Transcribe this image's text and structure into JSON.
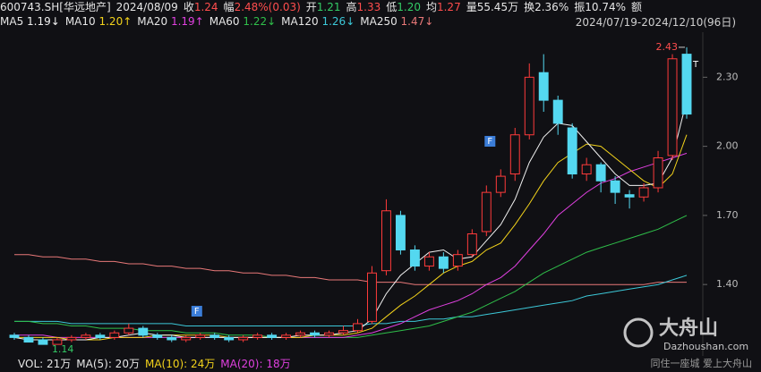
{
  "chart_data": {
    "type": "candlestick",
    "header": [
      {
        "label": "600743.SH[华远地产]",
        "color": "#e6e6e6"
      },
      {
        "label": "2024/08/09",
        "color": "#e6e6e6"
      },
      {
        "label": "收",
        "value": "1.24",
        "color": "#ff4d4d"
      },
      {
        "label": "幅",
        "value": "2.48%(0.03)",
        "color": "#ff4d4d"
      },
      {
        "label": "开",
        "value": "1.21",
        "color": "#33cc66"
      },
      {
        "label": "高",
        "value": "1.33",
        "color": "#ff4d4d"
      },
      {
        "label": "低",
        "value": "1.20",
        "color": "#33cc66"
      },
      {
        "label": "均",
        "value": "1.27",
        "color": "#ff4d4d"
      },
      {
        "label": "量",
        "value": "55.45万",
        "color": "#e6e6e6"
      },
      {
        "label": "换",
        "value": "2.36%",
        "color": "#e6e6e6"
      },
      {
        "label": "振",
        "value": "10.74%",
        "color": "#e6e6e6"
      },
      {
        "label": "额",
        "color": "#e6e6e6"
      }
    ],
    "range_label": "2024/07/19-2024/12/10(96日)",
    "up_color": "#ff3b3b",
    "down_color": "#54d8f0",
    "open": [
      1.18,
      1.17,
      1.16,
      1.14,
      1.16,
      1.17,
      1.18,
      1.17,
      1.19,
      1.21,
      1.18,
      1.17,
      1.16,
      1.17,
      1.18,
      1.17,
      1.16,
      1.17,
      1.18,
      1.17,
      1.18,
      1.19,
      1.18,
      1.19,
      1.2,
      1.24,
      1.46,
      1.7,
      1.55,
      1.48,
      1.52,
      1.48,
      1.53,
      1.63,
      1.8,
      1.88,
      2.05,
      2.32,
      2.2,
      2.08,
      1.88,
      1.92,
      1.85,
      1.79,
      1.78,
      1.82,
      1.96,
      2.4
    ],
    "high": [
      1.19,
      1.18,
      1.17,
      1.17,
      1.18,
      1.19,
      1.19,
      1.2,
      1.23,
      1.22,
      1.19,
      1.18,
      1.18,
      1.19,
      1.19,
      1.18,
      1.18,
      1.19,
      1.19,
      1.19,
      1.2,
      1.2,
      1.2,
      1.22,
      1.25,
      1.48,
      1.77,
      1.72,
      1.57,
      1.54,
      1.54,
      1.55,
      1.64,
      1.83,
      1.9,
      2.08,
      2.36,
      2.4,
      2.22,
      2.1,
      1.95,
      1.93,
      1.87,
      1.81,
      1.84,
      1.98,
      2.4,
      2.43
    ],
    "low": [
      1.16,
      1.15,
      1.14,
      1.15,
      1.15,
      1.16,
      1.16,
      1.16,
      1.18,
      1.17,
      1.16,
      1.15,
      1.15,
      1.16,
      1.16,
      1.15,
      1.15,
      1.16,
      1.16,
      1.16,
      1.17,
      1.17,
      1.17,
      1.18,
      1.19,
      1.23,
      1.44,
      1.53,
      1.46,
      1.46,
      1.45,
      1.46,
      1.52,
      1.61,
      1.78,
      1.85,
      2.03,
      2.15,
      2.05,
      1.86,
      1.85,
      1.8,
      1.75,
      1.73,
      1.76,
      1.8,
      1.94,
      2.12
    ],
    "close": [
      1.17,
      1.15,
      1.14,
      1.16,
      1.17,
      1.18,
      1.17,
      1.19,
      1.21,
      1.18,
      1.17,
      1.16,
      1.17,
      1.18,
      1.17,
      1.16,
      1.17,
      1.18,
      1.17,
      1.18,
      1.19,
      1.18,
      1.19,
      1.2,
      1.23,
      1.45,
      1.72,
      1.55,
      1.48,
      1.52,
      1.47,
      1.53,
      1.62,
      1.8,
      1.87,
      2.05,
      2.3,
      2.2,
      2.1,
      1.88,
      1.92,
      1.85,
      1.8,
      1.78,
      1.82,
      1.95,
      2.38,
      2.14
    ],
    "series": [
      {
        "name": "MA5",
        "value_label": "1.19↓",
        "color": "#f0f0f0",
        "values": [
          1.17,
          1.16,
          1.16,
          1.16,
          1.16,
          1.16,
          1.17,
          1.17,
          1.18,
          1.19,
          1.18,
          1.18,
          1.17,
          1.17,
          1.17,
          1.17,
          1.17,
          1.17,
          1.17,
          1.17,
          1.18,
          1.18,
          1.18,
          1.19,
          1.2,
          1.25,
          1.36,
          1.44,
          1.49,
          1.54,
          1.55,
          1.51,
          1.52,
          1.59,
          1.66,
          1.77,
          1.93,
          2.04,
          2.1,
          2.09,
          2.02,
          1.95,
          1.88,
          1.83,
          1.83,
          1.84,
          1.95,
          2.2
        ]
      },
      {
        "name": "MA10",
        "value_label": "1.20↑",
        "color": "#f2d21b",
        "values": [
          1.17,
          1.17,
          1.17,
          1.17,
          1.16,
          1.16,
          1.16,
          1.17,
          1.17,
          1.17,
          1.18,
          1.18,
          1.18,
          1.18,
          1.18,
          1.17,
          1.17,
          1.17,
          1.17,
          1.17,
          1.17,
          1.18,
          1.18,
          1.18,
          1.19,
          1.21,
          1.26,
          1.31,
          1.35,
          1.4,
          1.45,
          1.48,
          1.5,
          1.55,
          1.58,
          1.66,
          1.75,
          1.85,
          1.93,
          1.97,
          2.01,
          2.0,
          1.95,
          1.9,
          1.85,
          1.82,
          1.88,
          2.05
        ]
      },
      {
        "name": "MA20",
        "value_label": "1.19↑",
        "color": "#e040e0",
        "values": [
          1.18,
          1.18,
          1.18,
          1.17,
          1.17,
          1.17,
          1.17,
          1.17,
          1.17,
          1.17,
          1.17,
          1.17,
          1.17,
          1.17,
          1.17,
          1.17,
          1.17,
          1.17,
          1.17,
          1.17,
          1.17,
          1.17,
          1.17,
          1.17,
          1.18,
          1.19,
          1.21,
          1.23,
          1.26,
          1.29,
          1.31,
          1.33,
          1.36,
          1.4,
          1.43,
          1.48,
          1.55,
          1.62,
          1.7,
          1.75,
          1.8,
          1.84,
          1.86,
          1.89,
          1.91,
          1.93,
          1.95,
          1.97
        ]
      },
      {
        "name": "MA60",
        "value_label": "1.22↓",
        "color": "#2fbf4a",
        "values": [
          1.24,
          1.24,
          1.23,
          1.23,
          1.22,
          1.22,
          1.21,
          1.21,
          1.21,
          1.2,
          1.2,
          1.2,
          1.19,
          1.19,
          1.19,
          1.18,
          1.18,
          1.18,
          1.17,
          1.17,
          1.17,
          1.17,
          1.17,
          1.17,
          1.17,
          1.18,
          1.19,
          1.2,
          1.21,
          1.22,
          1.24,
          1.26,
          1.28,
          1.31,
          1.34,
          1.37,
          1.41,
          1.45,
          1.48,
          1.51,
          1.54,
          1.56,
          1.58,
          1.6,
          1.62,
          1.64,
          1.67,
          1.7
        ]
      },
      {
        "name": "MA120",
        "value_label": "1.26↓",
        "color": "#3cc8d8",
        "values": [
          1.24,
          1.24,
          1.24,
          1.24,
          1.23,
          1.23,
          1.23,
          1.23,
          1.23,
          1.23,
          1.23,
          1.23,
          1.22,
          1.22,
          1.22,
          1.22,
          1.22,
          1.22,
          1.22,
          1.22,
          1.22,
          1.22,
          1.22,
          1.22,
          1.22,
          1.23,
          1.23,
          1.24,
          1.24,
          1.25,
          1.25,
          1.26,
          1.26,
          1.27,
          1.28,
          1.29,
          1.3,
          1.31,
          1.32,
          1.33,
          1.35,
          1.36,
          1.37,
          1.38,
          1.39,
          1.4,
          1.42,
          1.44
        ]
      },
      {
        "name": "MA250",
        "value_label": "1.47↓",
        "color": "#e87878",
        "values": [
          1.53,
          1.53,
          1.52,
          1.52,
          1.51,
          1.51,
          1.5,
          1.5,
          1.49,
          1.49,
          1.48,
          1.48,
          1.47,
          1.47,
          1.46,
          1.46,
          1.45,
          1.45,
          1.44,
          1.44,
          1.43,
          1.43,
          1.42,
          1.42,
          1.42,
          1.41,
          1.41,
          1.41,
          1.4,
          1.4,
          1.4,
          1.4,
          1.4,
          1.4,
          1.4,
          1.4,
          1.4,
          1.4,
          1.4,
          1.4,
          1.4,
          1.4,
          1.4,
          1.4,
          1.4,
          1.41,
          1.41,
          1.41
        ]
      }
    ],
    "ylim": [
      1.09,
      2.48
    ],
    "yticks": [
      {
        "value": 1.4,
        "label": "1.40"
      },
      {
        "value": 1.7,
        "label": "1.70"
      },
      {
        "value": 2.0,
        "label": "2.00"
      },
      {
        "value": 2.3,
        "label": "2.30"
      }
    ],
    "markers": [
      "F",
      "F",
      "T"
    ],
    "volume": [
      {
        "text": "VOL: 21万",
        "color": "#e6e6e6"
      },
      {
        "text": "MA(5): 20万",
        "color": "#e6e6e6"
      },
      {
        "text": "MA(10): 24万",
        "color": "#f2d21b"
      },
      {
        "text": "MA(20): 18万",
        "color": "#e040e0"
      }
    ],
    "watermark": {
      "brand": "大舟山",
      "site": "Dazhoushan.com",
      "slogan": "同住一座城 爱上大舟山"
    }
  }
}
